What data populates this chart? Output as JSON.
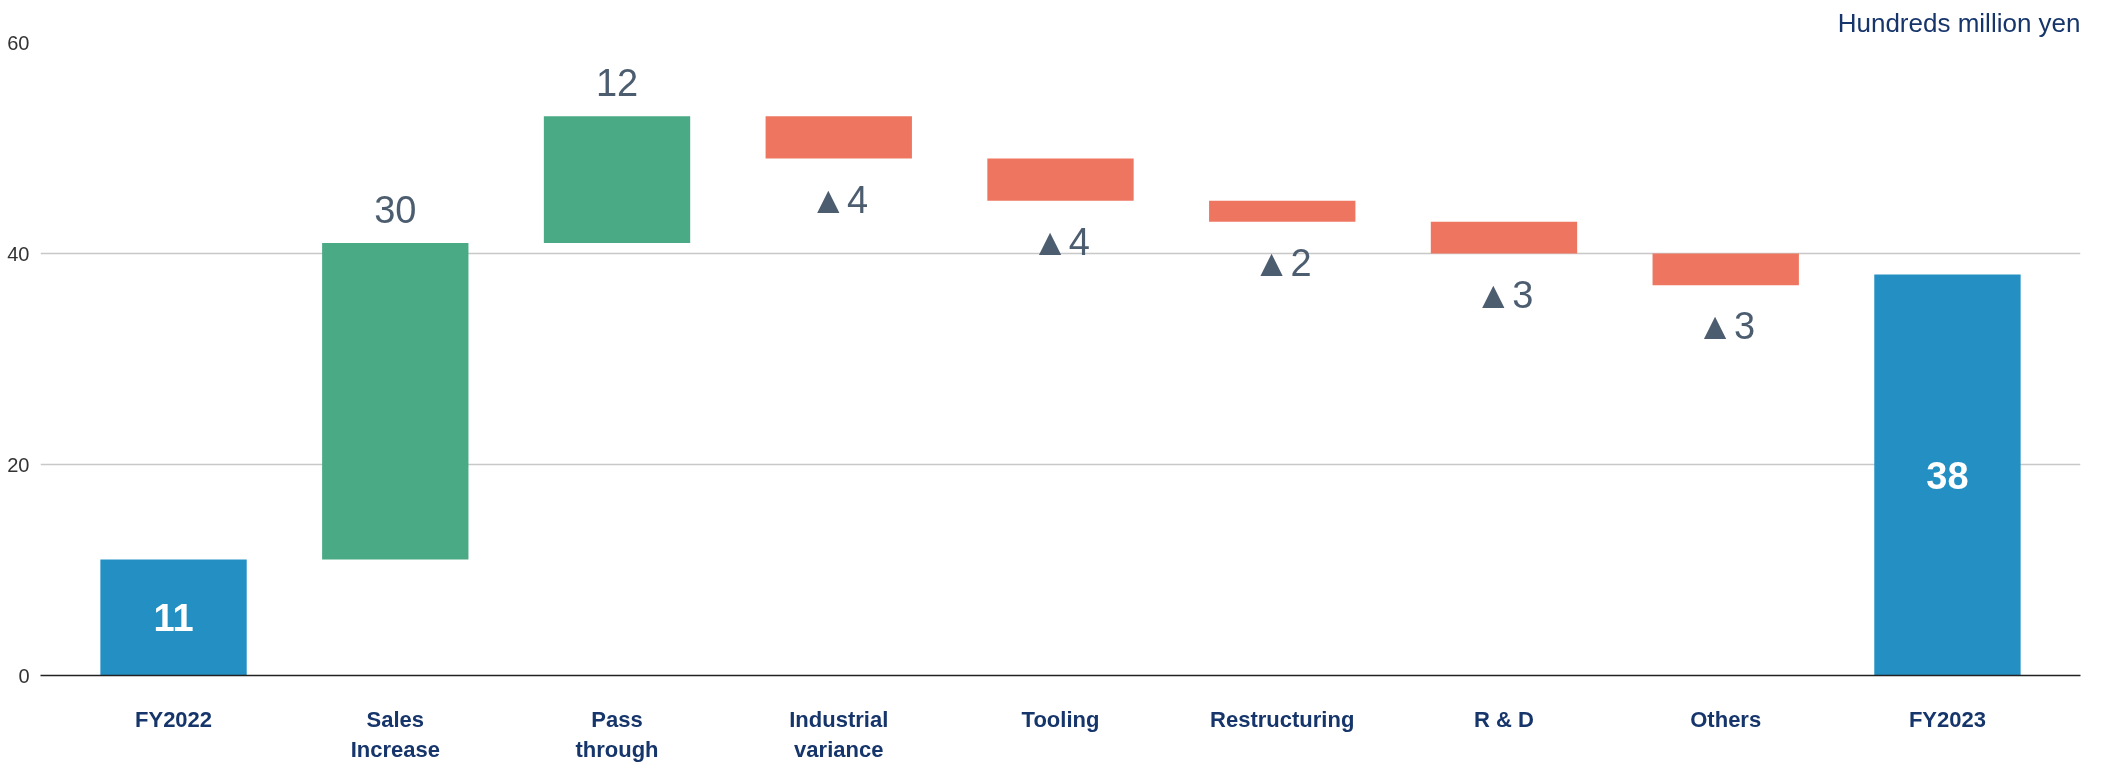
{
  "chart_data": {
    "type": "bar",
    "ylabel": "Hundreds million yen",
    "categories": [
      "FY2022",
      "Sales Increase",
      "Pass through",
      "Industrial variance",
      "Tooling",
      "Restructuring",
      "R & D",
      "Others",
      "FY2023"
    ],
    "values": [
      11,
      30,
      12,
      -4,
      -4,
      -2,
      -3,
      -3,
      38
    ],
    "base": [
      0,
      11,
      41,
      53,
      49,
      45,
      43,
      40,
      0
    ],
    "colors": [
      "#238fc3",
      "#4aaa86",
      "#4aaa86",
      "#ee7660",
      "#ee7660",
      "#ee7660",
      "#ee7660",
      "#ee7660",
      "#238fc3"
    ],
    "value_labels": [
      "11",
      "30",
      "12",
      "▲4",
      "▲4",
      "▲2",
      "▲3",
      "▲3",
      "38"
    ],
    "ylim": [
      0,
      60
    ],
    "yticks": [
      0,
      20,
      40,
      60
    ],
    "grid": "y"
  }
}
